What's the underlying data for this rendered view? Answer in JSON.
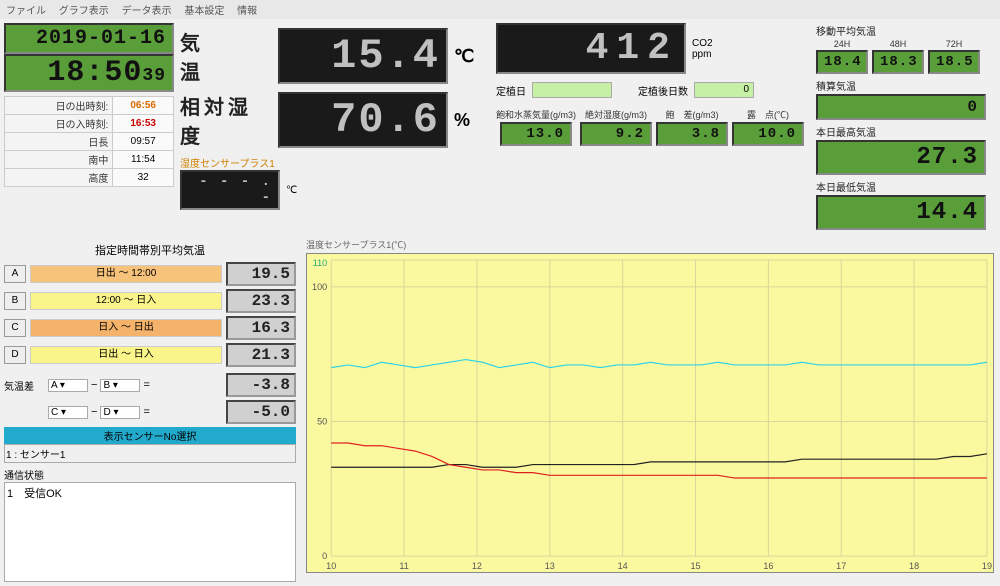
{
  "menu": [
    "ファイル",
    "グラフ表示",
    "データ表示",
    "基本設定",
    "情報"
  ],
  "datetime": {
    "date": "2019-01-16",
    "time_hm": "18:50",
    "time_s": "39"
  },
  "sun": {
    "sunrise_label": "日の出時刻:",
    "sunrise": "06:56",
    "sunset_label": "日の入時刻:",
    "sunset": "16:53",
    "daylen_label": "日長",
    "daylen": "09:57",
    "noon_label": "南中",
    "noon": "11:54",
    "alt_label": "高度",
    "alt": "32"
  },
  "main": {
    "temp_label": "気　　温",
    "temp_value": "15.4",
    "temp_unit": "℃",
    "rh_label": "相対湿度",
    "rh_value": "70.6",
    "rh_unit": "%",
    "sensor_plus_label": "湿度センサープラス1",
    "sensor_plus_value": "- - - . -",
    "sensor_plus_unit": "℃"
  },
  "co2": {
    "value": "412",
    "unit_label": "CO2",
    "unit": "ppm"
  },
  "planting": {
    "date_label": "定植日",
    "days_label": "定植後日数",
    "days_value": "0"
  },
  "subrow": {
    "items": [
      {
        "cap": "飽和水蒸気量(g/m3)",
        "val": "13.0"
      },
      {
        "cap": "絶対湿度(g/m3)",
        "val": "9.2"
      },
      {
        "cap": "飽　差(g/m3)",
        "val": "3.8"
      },
      {
        "cap": "露　点(℃)",
        "val": "10.0"
      }
    ]
  },
  "moving_avg": {
    "label": "移動平均気温",
    "items": [
      {
        "cap": "24H",
        "val": "18.4"
      },
      {
        "cap": "48H",
        "val": "18.3"
      },
      {
        "cap": "72H",
        "val": "18.5"
      }
    ]
  },
  "integrated": {
    "label": "積算気温",
    "val": "0"
  },
  "today_high": {
    "label": "本日最高気温",
    "val": "27.3"
  },
  "today_low": {
    "label": "本日最低気温",
    "val": "14.4"
  },
  "time_avg": {
    "title": "指定時間帯別平均気温",
    "rows": [
      {
        "btn": "A",
        "range": "日出 ～ 12:00",
        "cls": "range-orange",
        "val": "19.5"
      },
      {
        "btn": "B",
        "range": "12:00 ～ 日入",
        "cls": "range-yellow",
        "val": "23.3"
      },
      {
        "btn": "C",
        "range": "日入 ～ 日出",
        "cls": "range-lorange",
        "val": "16.3"
      },
      {
        "btn": "D",
        "range": "日出 ～ 日入",
        "cls": "range-yellow",
        "val": "21.3"
      }
    ],
    "diff_label": "気温差",
    "diffs": [
      {
        "a": "A",
        "b": "B",
        "val": "-3.8"
      },
      {
        "a": "C",
        "b": "D",
        "val": "-5.0"
      }
    ]
  },
  "sensor_select": {
    "bar": "表示センサーNo選択",
    "value": "1 : センサー1"
  },
  "comm": {
    "label": "通信状態",
    "text": "1　受信OK"
  },
  "chart": {
    "title": "温度センサープラス1(℃)",
    "ylim": [
      0,
      110
    ],
    "yticks": [
      0,
      50,
      100,
      110
    ],
    "ytick_labels": [
      "0",
      "50",
      "100",
      ""
    ],
    "top_label": "110",
    "xlim": [
      10,
      19
    ],
    "xticks": [
      10,
      11,
      12,
      13,
      14,
      15,
      16,
      17,
      18,
      19
    ],
    "grid_color": "#d8d69a",
    "bg": "#fbf9a0",
    "series": {
      "cyan": {
        "color": "#2fd3e8",
        "width": 1.2,
        "y": [
          70,
          71,
          70,
          72,
          71,
          70,
          71,
          72,
          73,
          72,
          70,
          71,
          72,
          70,
          71,
          71,
          70,
          71,
          71,
          72,
          71,
          71,
          71,
          72,
          71,
          71,
          71,
          71,
          72,
          71,
          71,
          71,
          71,
          71,
          71,
          71,
          71,
          71,
          71,
          72
        ]
      },
      "black": {
        "color": "#222",
        "width": 1.2,
        "y": [
          33,
          33,
          33,
          33,
          33,
          33,
          33,
          34,
          34,
          33,
          33,
          33,
          34,
          34,
          34,
          34,
          34,
          34,
          34,
          35,
          35,
          35,
          35,
          35,
          35,
          35,
          35,
          35,
          36,
          36,
          36,
          36,
          36,
          36,
          36,
          36,
          36,
          37,
          37,
          38
        ]
      },
      "red": {
        "color": "#e02020",
        "width": 1.2,
        "y": [
          42,
          42,
          41,
          41,
          40,
          39,
          37,
          34,
          33,
          32,
          32,
          31,
          31,
          30,
          30,
          30,
          30,
          30,
          30,
          30,
          30,
          30,
          30,
          30,
          29,
          29,
          29,
          29,
          29,
          29,
          29,
          29,
          29,
          29,
          29,
          29,
          29,
          29,
          29,
          29
        ]
      }
    }
  },
  "colors": {
    "lcd_green": "#5a9e3a",
    "lcd_grey": "#d0d0d0",
    "lcd_dark": "#1a1a1a"
  }
}
